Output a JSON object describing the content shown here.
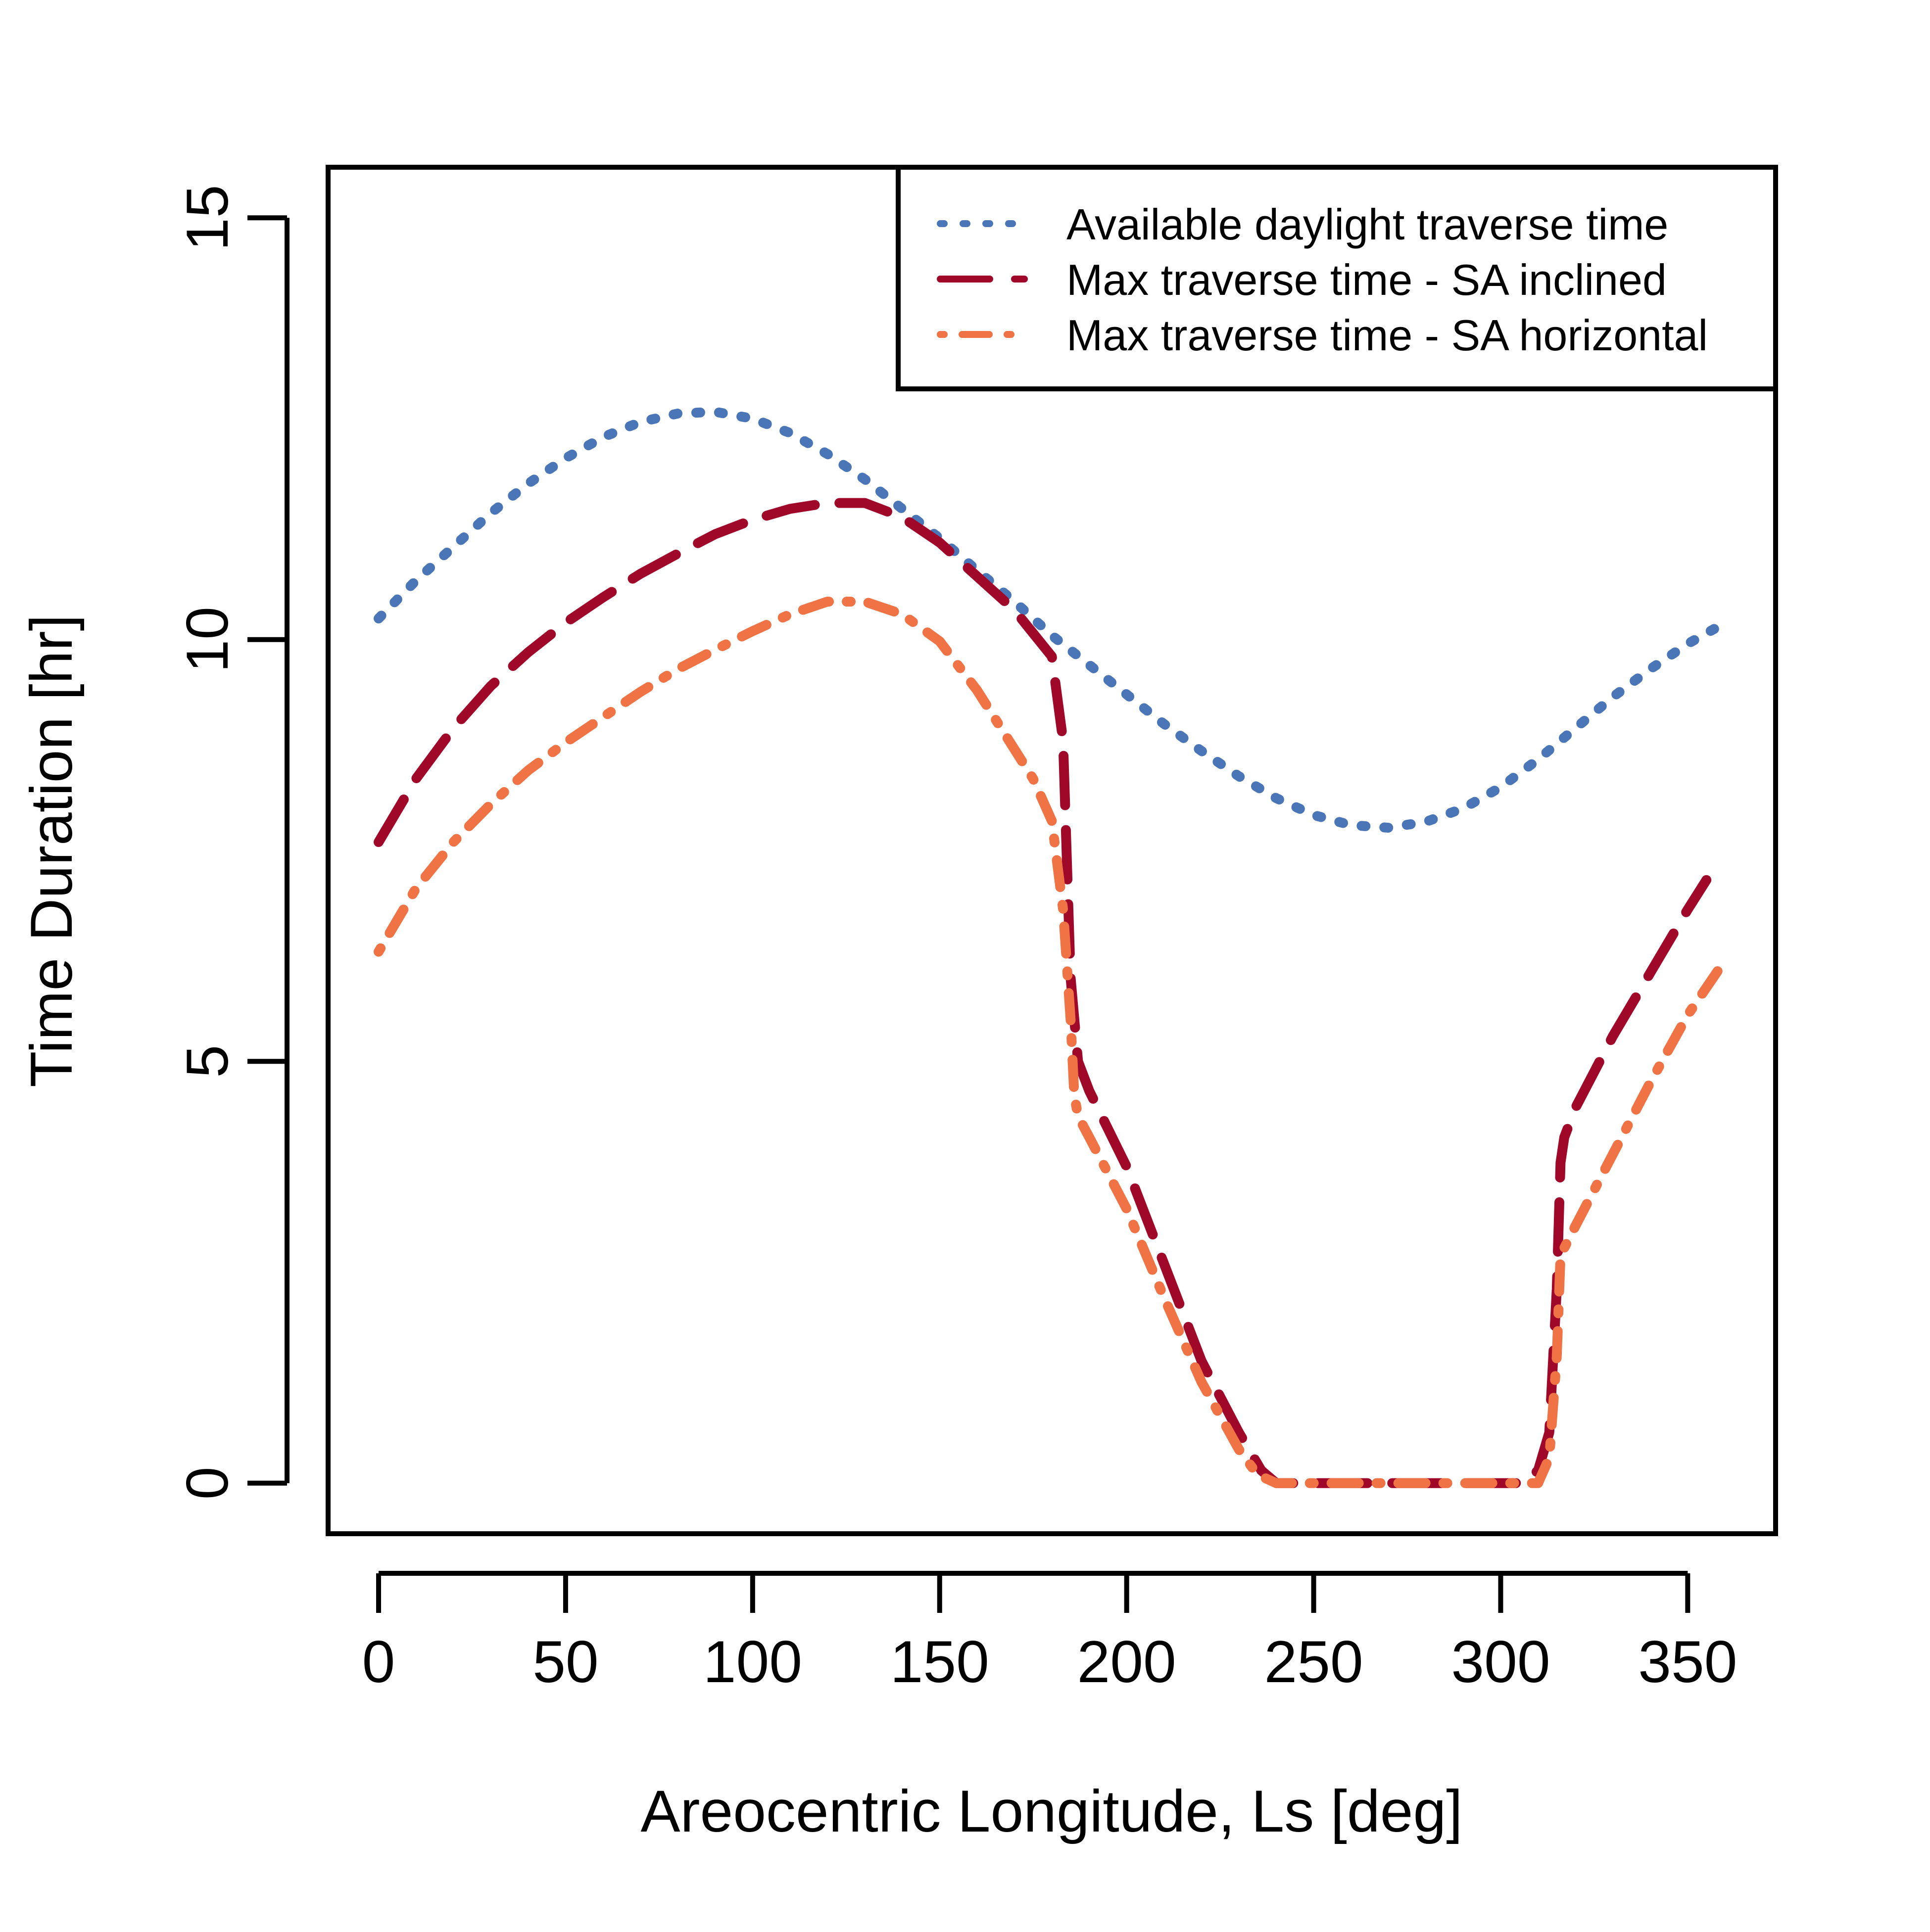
{
  "chart_data": {
    "type": "line",
    "title": "",
    "xlabel": "Areocentric Longitude, Ls [deg]",
    "ylabel": "Time Duration [hr]",
    "xlim": [
      -13.5,
      373.5
    ],
    "ylim": [
      -0.6,
      15.6
    ],
    "xticks": [
      0,
      50,
      100,
      150,
      200,
      250,
      300,
      350
    ],
    "yticks": [
      0,
      5,
      10,
      15
    ],
    "grid": false,
    "legend_position": "top-right",
    "series": [
      {
        "name": "Available daylight traverse time",
        "color": "#4a76b8",
        "style": "dotted",
        "x": [
          0,
          10,
          20,
          30,
          40,
          50,
          60,
          70,
          80,
          90,
          100,
          110,
          120,
          130,
          140,
          150,
          160,
          170,
          180,
          190,
          200,
          210,
          220,
          230,
          240,
          250,
          260,
          270,
          280,
          290,
          300,
          310,
          320,
          330,
          340,
          350,
          360
        ],
        "y": [
          10.25,
          10.7,
          11.1,
          11.5,
          11.85,
          12.15,
          12.4,
          12.58,
          12.68,
          12.7,
          12.62,
          12.45,
          12.2,
          11.9,
          11.55,
          11.2,
          10.82,
          10.45,
          10.05,
          9.7,
          9.35,
          9.0,
          8.68,
          8.38,
          8.12,
          7.92,
          7.8,
          7.77,
          7.84,
          8.0,
          8.25,
          8.58,
          8.95,
          9.32,
          9.65,
          9.95,
          10.2
        ]
      },
      {
        "name": "Max traverse time - SA inclined",
        "color": "#a0082a",
        "style": "dashed",
        "x": [
          0,
          10,
          20,
          30,
          40,
          50,
          60,
          70,
          80,
          90,
          100,
          110,
          120,
          130,
          140,
          150,
          160,
          170,
          180,
          183,
          185,
          187,
          190,
          200,
          210,
          220,
          230,
          236,
          240,
          250,
          260,
          270,
          280,
          290,
          300,
          306,
          310,
          313,
          315,
          316,
          317,
          320,
          330,
          340,
          350,
          355
        ],
        "y": [
          7.6,
          8.35,
          8.95,
          9.45,
          9.85,
          10.2,
          10.5,
          10.78,
          11.02,
          11.25,
          11.42,
          11.55,
          11.62,
          11.62,
          11.45,
          11.15,
          10.75,
          10.35,
          9.8,
          8.8,
          6.0,
          5.0,
          4.65,
          3.75,
          2.6,
          1.45,
          0.6,
          0.15,
          0.0,
          0.0,
          0.0,
          0.0,
          0.0,
          0.0,
          0.0,
          0.0,
          0.15,
          0.6,
          2.3,
          3.8,
          4.1,
          4.45,
          5.3,
          6.05,
          6.8,
          7.15
        ]
      },
      {
        "name": "Max traverse time - SA horizontal",
        "color": "#f07346",
        "style": "dotdash",
        "x": [
          0,
          10,
          20,
          30,
          40,
          50,
          60,
          70,
          80,
          90,
          100,
          110,
          120,
          130,
          140,
          150,
          160,
          170,
          175,
          180,
          183,
          185,
          186,
          187,
          190,
          200,
          210,
          220,
          230,
          235,
          240,
          250,
          260,
          270,
          280,
          290,
          300,
          310,
          313,
          315,
          316,
          320,
          330,
          340,
          350,
          360
        ],
        "y": [
          6.3,
          7.05,
          7.6,
          8.05,
          8.45,
          8.78,
          9.08,
          9.38,
          9.65,
          9.88,
          10.1,
          10.3,
          10.45,
          10.45,
          10.3,
          9.98,
          9.4,
          8.7,
          8.35,
          7.85,
          6.8,
          5.5,
          4.6,
          4.35,
          4.1,
          3.25,
          2.2,
          1.2,
          0.4,
          0.1,
          0.0,
          0.0,
          0.0,
          0.0,
          0.0,
          0.0,
          0.0,
          0.0,
          0.3,
          1.5,
          2.7,
          3.05,
          3.9,
          4.75,
          5.55,
          6.2
        ]
      }
    ]
  }
}
